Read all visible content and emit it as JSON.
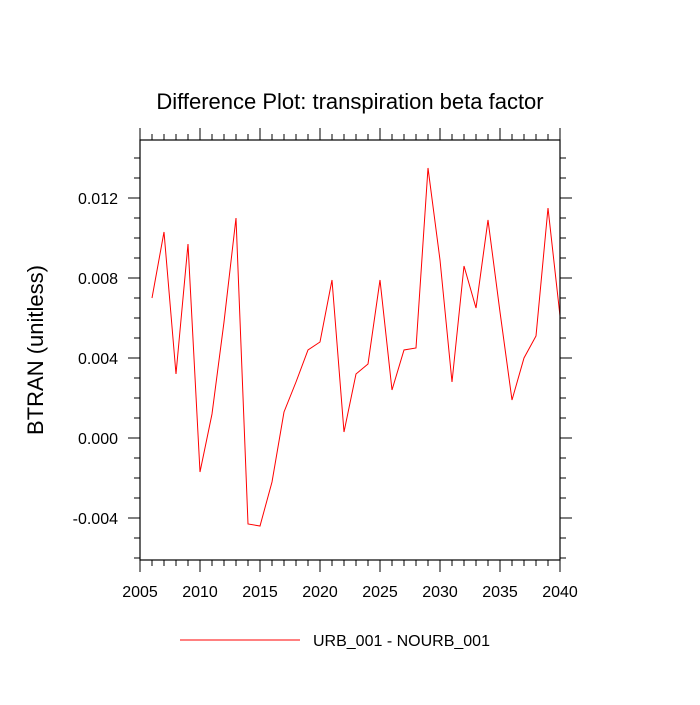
{
  "chart_data": {
    "type": "line",
    "title": "Difference Plot: transpiration beta factor",
    "xlabel": "",
    "ylabel": "BTRAN  (unitless)",
    "xlim": [
      2005,
      2040
    ],
    "ylim": [
      -0.0061,
      0.0149
    ],
    "x_ticks": [
      2005,
      2010,
      2015,
      2020,
      2025,
      2030,
      2035,
      2040
    ],
    "x_tick_labels": [
      "2005",
      "2010",
      "2015",
      "2020",
      "2025",
      "2030",
      "2035",
      "2040"
    ],
    "y_ticks": [
      -0.004,
      0.0,
      0.004,
      0.008,
      0.012
    ],
    "y_tick_labels": [
      "-0.004",
      "0.000",
      "0.004",
      "0.008",
      "0.012"
    ],
    "grid": false,
    "legend_position": "bottom-center",
    "series": [
      {
        "name": "URB_001 - NOURB_001",
        "color": "#ff0000",
        "x": [
          2006,
          2007,
          2008,
          2009,
          2010,
          2011,
          2012,
          2013,
          2014,
          2015,
          2016,
          2017,
          2018,
          2019,
          2020,
          2021,
          2022,
          2023,
          2024,
          2025,
          2026,
          2027,
          2028,
          2029,
          2030,
          2031,
          2032,
          2033,
          2034,
          2035,
          2036,
          2037,
          2038,
          2039,
          2040
        ],
        "y": [
          0.007,
          0.0103,
          0.0032,
          0.0097,
          -0.0017,
          0.0012,
          0.0058,
          0.011,
          -0.0043,
          -0.0044,
          -0.0022,
          0.0013,
          0.0028,
          0.0044,
          0.0048,
          0.0079,
          0.0003,
          0.0032,
          0.0037,
          0.0079,
          0.0024,
          0.0044,
          0.0045,
          0.0135,
          0.0089,
          0.0028,
          0.0086,
          0.0065,
          0.0109,
          0.0063,
          0.0019,
          0.004,
          0.0051,
          0.0115,
          0.0061
        ]
      }
    ]
  }
}
